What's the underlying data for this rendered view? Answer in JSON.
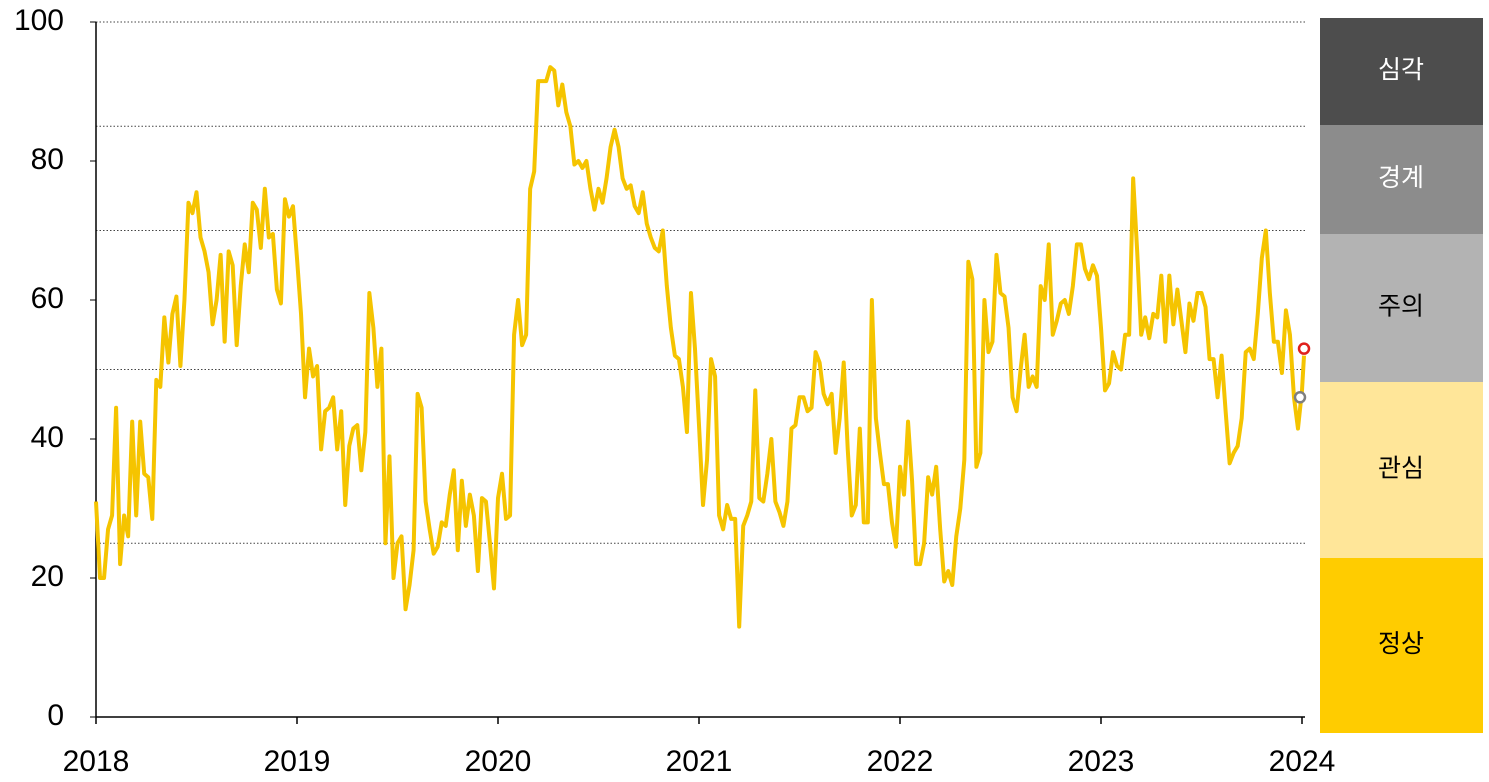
{
  "chart_data": {
    "type": "line",
    "x": [
      2018,
      2018.02,
      2018.04,
      2018.06,
      2018.08,
      2018.1,
      2018.12,
      2018.14,
      2018.16,
      2018.18,
      2018.2,
      2018.22,
      2018.24,
      2018.26,
      2018.28,
      2018.3,
      2018.32,
      2018.34,
      2018.36,
      2018.38,
      2018.4,
      2018.42,
      2018.44,
      2018.46,
      2018.48,
      2018.5,
      2018.52,
      2018.54,
      2018.56,
      2018.58,
      2018.6,
      2018.62,
      2018.64,
      2018.66,
      2018.68,
      2018.7,
      2018.72,
      2018.74,
      2018.76,
      2018.78,
      2018.8,
      2018.82,
      2018.84,
      2018.86,
      2018.88,
      2018.9,
      2018.92,
      2018.94,
      2018.96,
      2018.98,
      2019,
      2019.02,
      2019.04,
      2019.06,
      2019.08,
      2019.1,
      2019.12,
      2019.14,
      2019.16,
      2019.18,
      2019.2,
      2019.22,
      2019.24,
      2019.26,
      2019.28,
      2019.3,
      2019.32,
      2019.34,
      2019.36,
      2019.38,
      2019.4,
      2019.42,
      2019.44,
      2019.46,
      2019.48,
      2019.5,
      2019.52,
      2019.54,
      2019.56,
      2019.58,
      2019.6,
      2019.62,
      2019.64,
      2019.66,
      2019.68,
      2019.7,
      2019.72,
      2019.74,
      2019.76,
      2019.78,
      2019.8,
      2019.82,
      2019.84,
      2019.86,
      2019.88,
      2019.9,
      2019.92,
      2019.94,
      2019.96,
      2019.98,
      2020,
      2020.02,
      2020.04,
      2020.06,
      2020.08,
      2020.1,
      2020.12,
      2020.14,
      2020.16,
      2020.18,
      2020.2,
      2020.22,
      2020.24,
      2020.26,
      2020.28,
      2020.3,
      2020.32,
      2020.34,
      2020.36,
      2020.38,
      2020.4,
      2020.42,
      2020.44,
      2020.46,
      2020.48,
      2020.5,
      2020.52,
      2020.54,
      2020.56,
      2020.58,
      2020.6,
      2020.62,
      2020.64,
      2020.66,
      2020.68,
      2020.7,
      2020.72,
      2020.74,
      2020.76,
      2020.78,
      2020.8,
      2020.82,
      2020.84,
      2020.86,
      2020.88,
      2020.9,
      2020.92,
      2020.94,
      2020.96,
      2020.98,
      2021,
      2021.02,
      2021.04,
      2021.06,
      2021.08,
      2021.1,
      2021.12,
      2021.14,
      2021.16,
      2021.18,
      2021.2,
      2021.22,
      2021.24,
      2021.26,
      2021.28,
      2021.3,
      2021.32,
      2021.34,
      2021.36,
      2021.38,
      2021.4,
      2021.42,
      2021.44,
      2021.46,
      2021.48,
      2021.5,
      2021.52,
      2021.54,
      2021.56,
      2021.58,
      2021.6,
      2021.62,
      2021.64,
      2021.66,
      2021.68,
      2021.7,
      2021.72,
      2021.74,
      2021.76,
      2021.78,
      2021.8,
      2021.82,
      2021.84,
      2021.86,
      2021.88,
      2021.9,
      2021.92,
      2021.94,
      2021.96,
      2021.98,
      2022,
      2022.02,
      2022.04,
      2022.06,
      2022.08,
      2022.1,
      2022.12,
      2022.14,
      2022.16,
      2022.18,
      2022.2,
      2022.22,
      2022.24,
      2022.26,
      2022.28,
      2022.3,
      2022.32,
      2022.34,
      2022.36,
      2022.38,
      2022.4,
      2022.42,
      2022.44,
      2022.46,
      2022.48,
      2022.5,
      2022.52,
      2022.54,
      2022.56,
      2022.58,
      2022.6,
      2022.62,
      2022.64,
      2022.66,
      2022.68,
      2022.7,
      2022.72,
      2022.74,
      2022.76,
      2022.78,
      2022.8,
      2022.82,
      2022.84,
      2022.86,
      2022.88,
      2022.9,
      2022.92,
      2022.94,
      2022.96,
      2022.98,
      2023,
      2023.02,
      2023.04,
      2023.06,
      2023.08,
      2023.1,
      2023.12,
      2023.14,
      2023.16,
      2023.18,
      2023.2,
      2023.22,
      2023.24,
      2023.26,
      2023.28,
      2023.3,
      2023.32,
      2023.34,
      2023.36,
      2023.38,
      2023.4,
      2023.42,
      2023.44,
      2023.46,
      2023.48,
      2023.5,
      2023.52,
      2023.54,
      2023.56,
      2023.58,
      2023.6,
      2023.62,
      2023.64,
      2023.66,
      2023.68,
      2023.7,
      2023.72,
      2023.74,
      2023.76,
      2023.78,
      2023.8,
      2023.82,
      2023.84,
      2023.86,
      2023.88,
      2023.9,
      2023.92,
      2023.94,
      2023.96,
      2023.98,
      2024,
      2024.01
    ],
    "series": [
      {
        "color": "#f5c400",
        "values": [
          31,
          20,
          20,
          27,
          29,
          44.5,
          22,
          29,
          26,
          42.5,
          29,
          42.5,
          35,
          34.5,
          28.5,
          48.5,
          47.5,
          57.5,
          51,
          58,
          60.5,
          50.5,
          60,
          74,
          72.5,
          75.5,
          69,
          67,
          64,
          56.5,
          60,
          66.5,
          54,
          67,
          65,
          53.5,
          62,
          68,
          64,
          74,
          73,
          67.5,
          76,
          69,
          69.5,
          61.5,
          59.5,
          74.5,
          72,
          73.5,
          66,
          58,
          46,
          53,
          49,
          50.5,
          38.5,
          44,
          44.5,
          46,
          38.5,
          44,
          30.5,
          39,
          41.5,
          42,
          35.5,
          41,
          61,
          56,
          47.5,
          53,
          25,
          37.5,
          20,
          25,
          26,
          15.5,
          19,
          24,
          46.5,
          44.5,
          31,
          27,
          23.5,
          24.5,
          28,
          27.5,
          32,
          35.5,
          24,
          34,
          27.5,
          32,
          29,
          21,
          31.5,
          31,
          25,
          18.5,
          31.5,
          35,
          28.5,
          29,
          55,
          60,
          53.5,
          55,
          76,
          78.5,
          91.5,
          91.5,
          91.5,
          93.5,
          93,
          88,
          91,
          87,
          85,
          79.5,
          80,
          79,
          80,
          76,
          73,
          76,
          74,
          77.5,
          82,
          84.5,
          82,
          77.5,
          76,
          76.5,
          73.5,
          72.5,
          75.5,
          71,
          69,
          67.5,
          67,
          70,
          62,
          56,
          52,
          51.5,
          47.5,
          41,
          61,
          53,
          42,
          30.5,
          37,
          51.5,
          49,
          29,
          27,
          30.5,
          28.5,
          28.5,
          13,
          27.5,
          29,
          31,
          47,
          31.5,
          31,
          35,
          40,
          31,
          29.5,
          27.5,
          31,
          41.5,
          42,
          46,
          46,
          44,
          44.5,
          52.5,
          51,
          46.5,
          45,
          46.5,
          38,
          43,
          51,
          38.5,
          29,
          30.5,
          41.5,
          28,
          28,
          60,
          43,
          38,
          33.5,
          33.5,
          28,
          24.5,
          36,
          32,
          42.5,
          34,
          22,
          22,
          25,
          34.5,
          32,
          36,
          27,
          19.5,
          21,
          19,
          26,
          30,
          37,
          65.5,
          63,
          36,
          38,
          60,
          52.5,
          54,
          66.5,
          61,
          60.5,
          56,
          46,
          44,
          50,
          55,
          47.5,
          49,
          47.5,
          62,
          60,
          68,
          55,
          57,
          59.5,
          60,
          58,
          62,
          68,
          68,
          64.5,
          63,
          65,
          63.5,
          56,
          47,
          48,
          52.5,
          50.5,
          50,
          55,
          55,
          77.5,
          67,
          55,
          57.5,
          54.5,
          58,
          57.5,
          63.5,
          54,
          63.5,
          56.5,
          61.5,
          57,
          52.5,
          59.5,
          57,
          61,
          61,
          59,
          51.5,
          51.5,
          46,
          52,
          44,
          36.5,
          38,
          39,
          43,
          52.5,
          53,
          51.5,
          58,
          66,
          70,
          61,
          54,
          54,
          49.5,
          58.5,
          55,
          46,
          41.5,
          47,
          52
        ]
      }
    ],
    "markers": [
      {
        "x": 2024.01,
        "y": 53,
        "color": "#e0201c"
      },
      {
        "x": 2023.99,
        "y": 46,
        "color": "#7f7f7f"
      }
    ],
    "xlim": [
      2018,
      2024
    ],
    "xticks": [
      2018,
      2019,
      2020,
      2021,
      2022,
      2023,
      2024
    ],
    "ylim": [
      0,
      100
    ],
    "yticks": [
      0,
      20,
      40,
      60,
      80,
      100
    ],
    "ref_lines": [
      25,
      50,
      70,
      85
    ],
    "bands": [
      {
        "label": "심각",
        "color": "#4d4d4d",
        "text_color": "#ffffff"
      },
      {
        "label": "경계",
        "color": "#8c8c8c",
        "text_color": "#ffffff"
      },
      {
        "label": "주의",
        "color": "#b3b3b3",
        "text_color": "#000000"
      },
      {
        "label": "관심",
        "color": "#ffe699",
        "text_color": "#000000"
      },
      {
        "label": "정상",
        "color": "#ffcc00",
        "text_color": "#000000"
      }
    ]
  }
}
